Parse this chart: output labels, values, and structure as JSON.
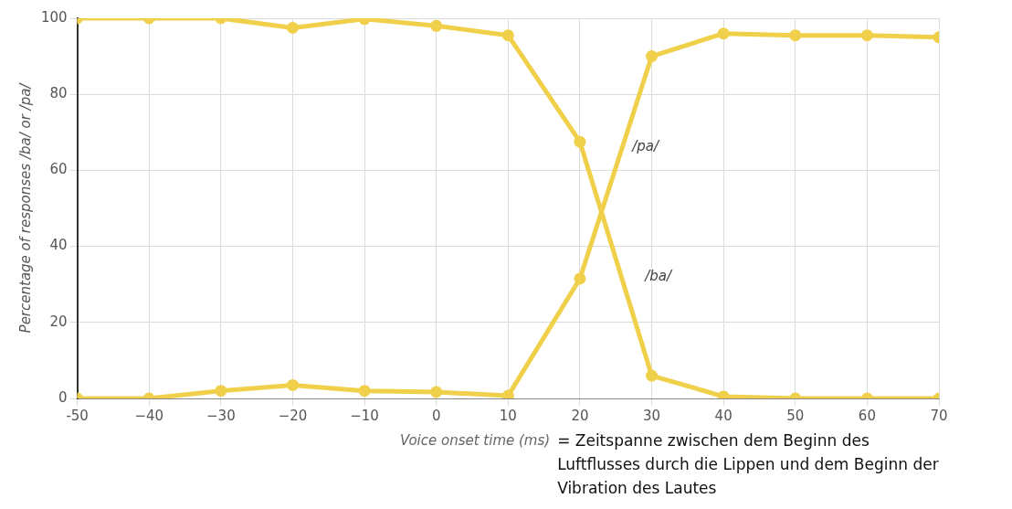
{
  "chart_data": {
    "type": "line",
    "xlabel": "Voice onset time (ms)",
    "ylabel": "Percentage of responses /ba/ or /pa/",
    "x": [
      -50,
      -40,
      -30,
      -20,
      -10,
      0,
      10,
      20,
      30,
      40,
      50,
      60,
      70
    ],
    "series": [
      {
        "name": "/ba/",
        "color": "#f0d04a",
        "values": [
          100,
          100,
          100,
          97.5,
          99.8,
          98,
          95.5,
          67.5,
          6,
          0.5,
          0,
          0,
          0
        ]
      },
      {
        "name": "/pa/",
        "color": "#f0d04a",
        "values": [
          0,
          0,
          2,
          3.5,
          2,
          1.7,
          0.7,
          31.5,
          90,
          96,
          95.5,
          95.5,
          95
        ]
      }
    ],
    "xlim": [
      -50,
      70
    ],
    "xticks": [
      -50,
      {
        "value": -40,
        "label": "−40"
      },
      {
        "value": -30,
        "label": "−30"
      },
      {
        "value": -20,
        "label": "−20"
      },
      {
        "value": -10,
        "label": "−10"
      },
      0,
      10,
      20,
      30,
      40,
      50,
      60,
      70
    ],
    "ylim": [
      0,
      100
    ],
    "yticks": [
      0,
      20,
      40,
      60,
      80,
      100
    ],
    "grid": true,
    "legend": false,
    "marker": "circle",
    "line_style": "solid",
    "annotations": [
      "= Zeitspanne zwischen dem Beginn des Luftflusses durch die Lippen und dem Beginn der Vibration des Lautes"
    ]
  }
}
